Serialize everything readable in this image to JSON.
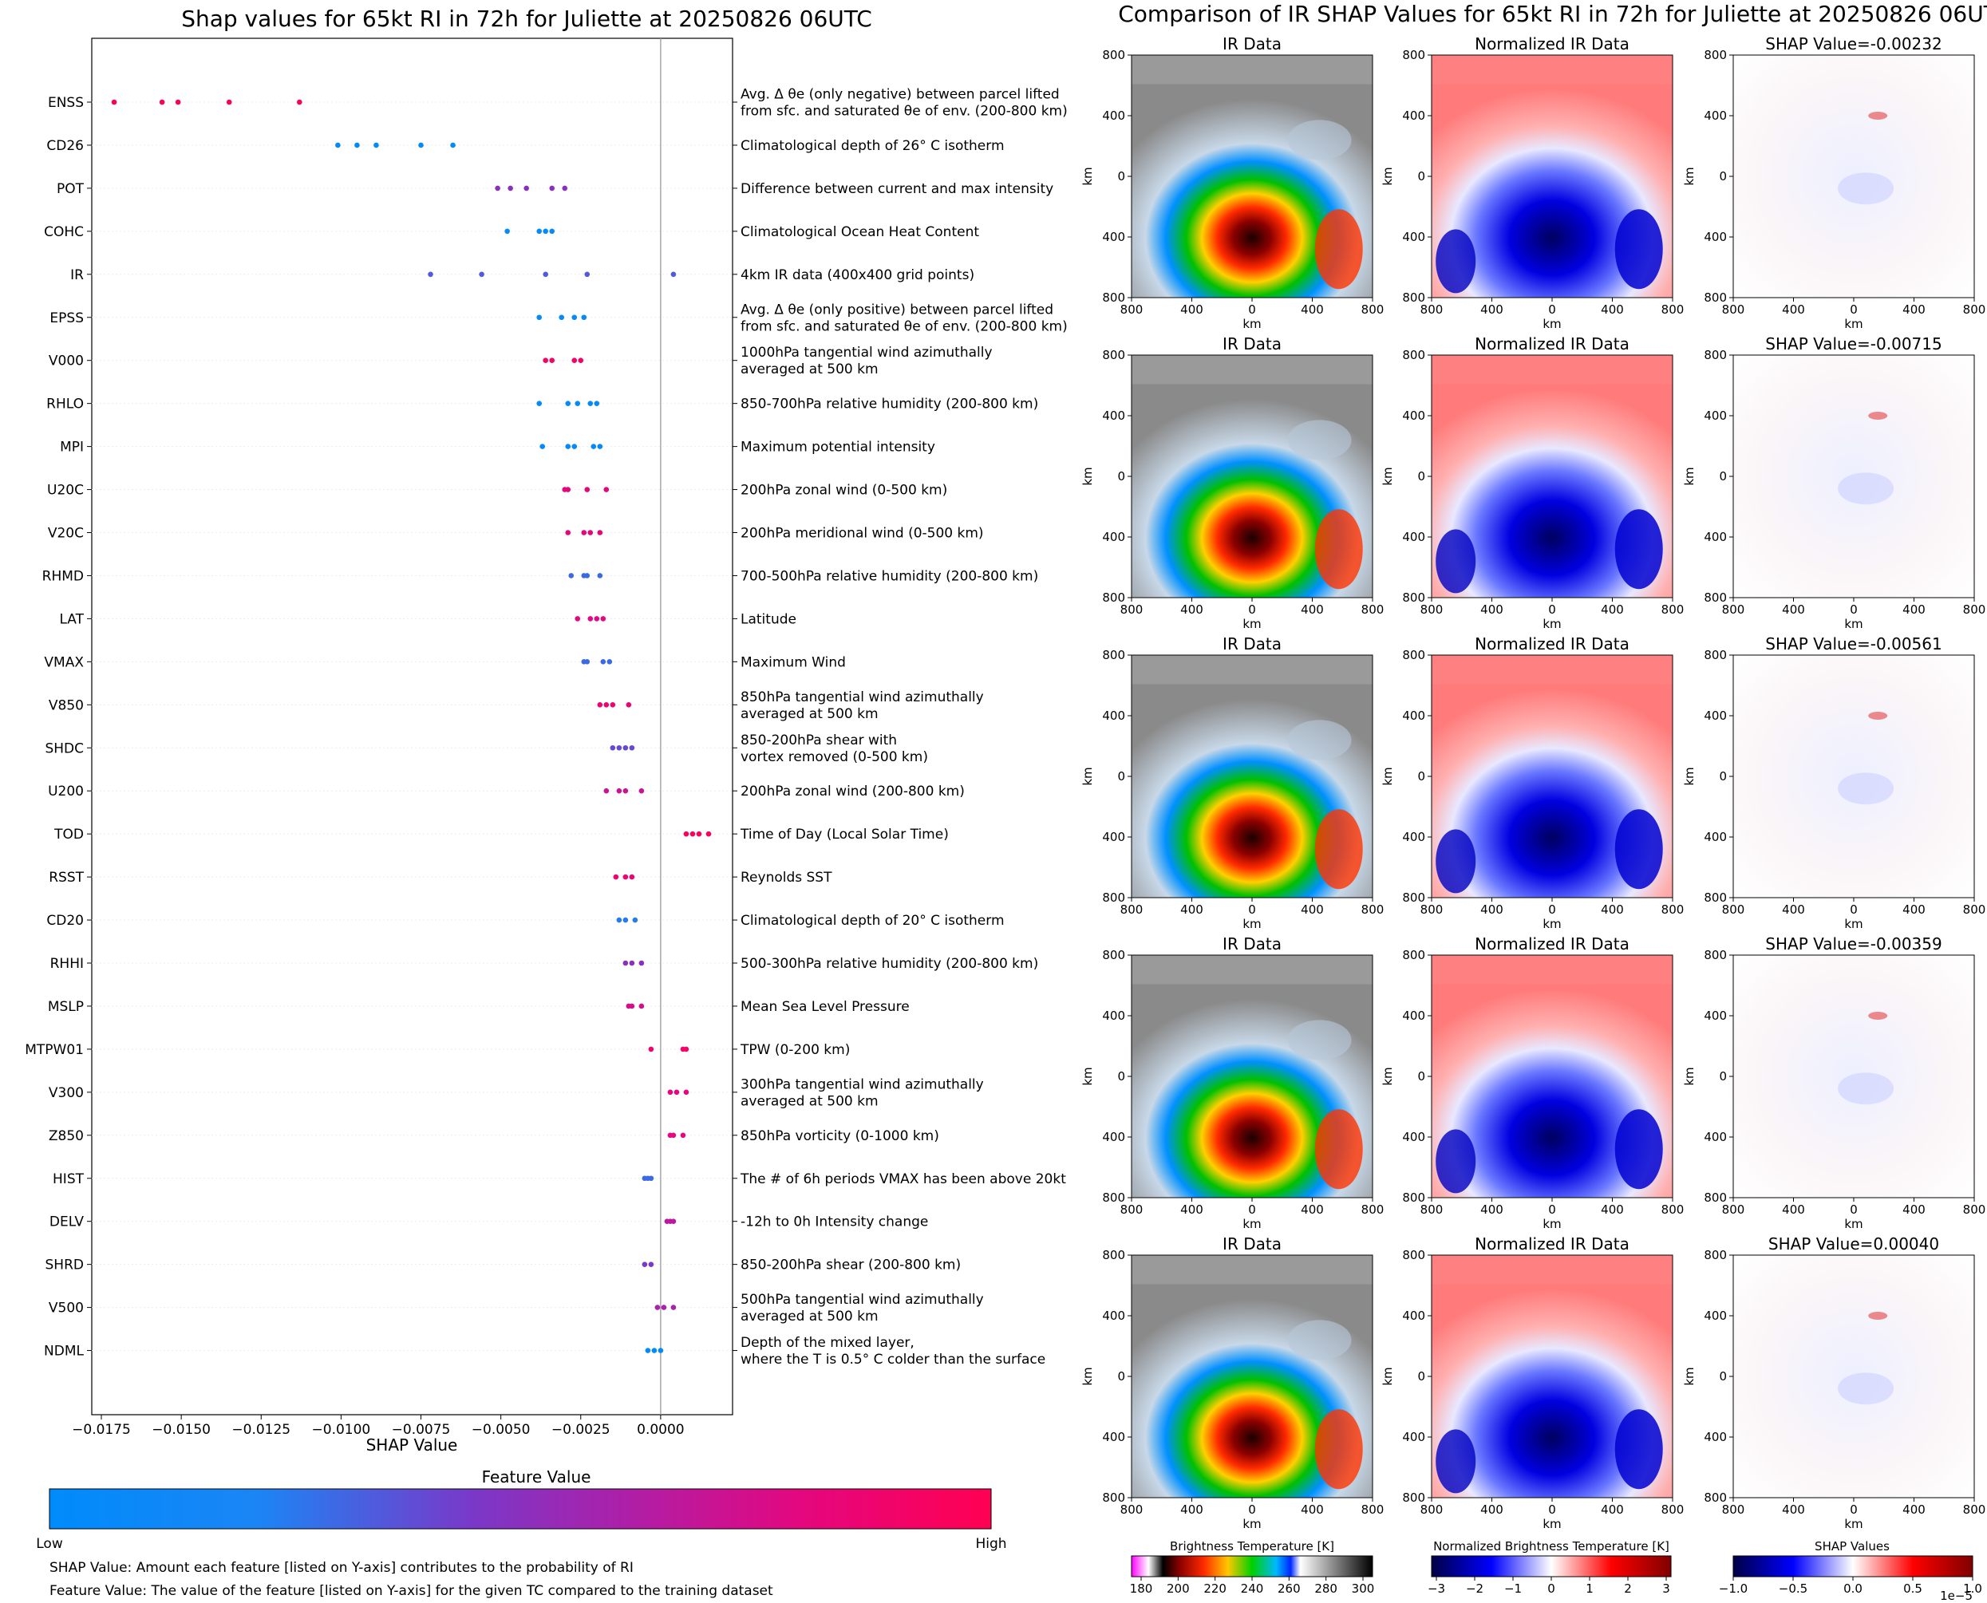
{
  "left_panel": {
    "title": "Shap values for 65kt RI in 72h for Juliette at 20250826 06UTC",
    "colorbar_title": "Feature Value",
    "colorbar_low": "Low",
    "colorbar_high": "High",
    "note_1": "SHAP Value: Amount each feature [listed on Y-axis] contributes to the probability of RI",
    "note_2": "Feature Value: The value of the feature [listed on Y-axis] for the given TC compared to the training dataset",
    "colors": {
      "low": "#008bfb",
      "mid": "#8b2fb5",
      "high": "#ff0052"
    }
  },
  "chart_data": [
    {
      "type": "scatter",
      "title": "Shap values for 65kt RI in 72h for Juliette at 20250826 06UTC",
      "xlabel": "SHAP Value",
      "xlim": [
        -0.0178,
        0.00225
      ],
      "xticks": [
        -0.0175,
        -0.015,
        -0.0125,
        -0.01,
        -0.0075,
        -0.005,
        -0.0025,
        0.0
      ],
      "xtick_labels": [
        "−0.0175",
        "−0.0150",
        "−0.0125",
        "−0.0100",
        "−0.0075",
        "−0.0050",
        "−0.0025",
        "0.0000"
      ],
      "features": [
        {
          "name": "ENSS",
          "desc": [
            "Avg. Δ θe (only negative) between parcel lifted",
            "from sfc. and saturated θe of env. (200-800 km)"
          ],
          "shap": [
            -0.0171,
            -0.0156,
            -0.0151,
            -0.0135,
            -0.0113
          ],
          "fv": [
            0.98,
            0.97,
            0.96,
            0.95,
            0.95
          ]
        },
        {
          "name": "CD26",
          "desc": [
            "Climatological depth of 26° C isotherm"
          ],
          "shap": [
            -0.0101,
            -0.0095,
            -0.0089,
            -0.0075,
            -0.0065
          ],
          "fv": [
            0.02,
            0.02,
            0.02,
            0.02,
            0.02
          ]
        },
        {
          "name": "POT",
          "desc": [
            "Difference between current and max intensity"
          ],
          "shap": [
            -0.0051,
            -0.0047,
            -0.0042,
            -0.0034,
            -0.003
          ],
          "fv": [
            0.5,
            0.5,
            0.5,
            0.5,
            0.5
          ]
        },
        {
          "name": "COHC",
          "desc": [
            "Climatological Ocean Heat Content"
          ],
          "shap": [
            -0.0048,
            -0.0038,
            -0.0036,
            -0.0034
          ],
          "fv": [
            0.05,
            0.05,
            0.05,
            0.05
          ]
        },
        {
          "name": "IR",
          "desc": [
            "4km IR data (400x400 grid points)"
          ],
          "shap": [
            -0.0072,
            -0.0056,
            -0.0036,
            -0.0023,
            0.0004
          ],
          "fv": [
            0.35,
            0.35,
            0.35,
            0.35,
            0.35
          ]
        },
        {
          "name": "EPSS",
          "desc": [
            "Avg. Δ θe (only positive) between parcel lifted",
            "from sfc. and saturated θe of env. (200-800 km)"
          ],
          "shap": [
            -0.0038,
            -0.0031,
            -0.0027,
            -0.0024
          ],
          "fv": [
            0.05,
            0.05,
            0.05,
            0.05
          ]
        },
        {
          "name": "V000",
          "desc": [
            "1000hPa tangential wind azimuthally",
            "averaged at 500 km"
          ],
          "shap": [
            -0.0036,
            -0.0034,
            -0.0027,
            -0.0025
          ],
          "fv": [
            0.92,
            0.92,
            0.92,
            0.92
          ]
        },
        {
          "name": "RHLO",
          "desc": [
            "850-700hPa relative humidity (200-800 km)"
          ],
          "shap": [
            -0.0038,
            -0.0029,
            -0.0026,
            -0.0022,
            -0.002
          ],
          "fv": [
            0.05,
            0.05,
            0.05,
            0.05,
            0.05
          ]
        },
        {
          "name": "MPI",
          "desc": [
            "Maximum potential intensity"
          ],
          "shap": [
            -0.0037,
            -0.0029,
            -0.0027,
            -0.0021,
            -0.0019
          ],
          "fv": [
            0.05,
            0.05,
            0.05,
            0.05,
            0.05
          ]
        },
        {
          "name": "U20C",
          "desc": [
            "200hPa zonal wind (0-500 km)"
          ],
          "shap": [
            -0.003,
            -0.0029,
            -0.0023,
            -0.0017
          ],
          "fv": [
            0.82,
            0.82,
            0.82,
            0.82
          ]
        },
        {
          "name": "V20C",
          "desc": [
            "200hPa meridional wind (0-500 km)"
          ],
          "shap": [
            -0.0029,
            -0.0024,
            -0.0022,
            -0.0019
          ],
          "fv": [
            0.82,
            0.82,
            0.82,
            0.82
          ]
        },
        {
          "name": "RHMD",
          "desc": [
            "700-500hPa relative humidity (200-800 km)"
          ],
          "shap": [
            -0.0028,
            -0.0024,
            -0.0023,
            -0.0019
          ],
          "fv": [
            0.3,
            0.3,
            0.3,
            0.3
          ]
        },
        {
          "name": "LAT",
          "desc": [
            "Latitude"
          ],
          "shap": [
            -0.0026,
            -0.0022,
            -0.002,
            -0.0018
          ],
          "fv": [
            0.8,
            0.8,
            0.8,
            0.8
          ]
        },
        {
          "name": "VMAX",
          "desc": [
            "Maximum Wind"
          ],
          "shap": [
            -0.0024,
            -0.0023,
            -0.0018,
            -0.0016
          ],
          "fv": [
            0.3,
            0.3,
            0.3,
            0.3
          ]
        },
        {
          "name": "V850",
          "desc": [
            "850hPa tangential wind azimuthally",
            "averaged at 500 km"
          ],
          "shap": [
            -0.0019,
            -0.0017,
            -0.0015,
            -0.001
          ],
          "fv": [
            0.85,
            0.85,
            0.85,
            0.85
          ]
        },
        {
          "name": "SHDC",
          "desc": [
            "850-200hPa shear with",
            "vortex removed (0-500 km)"
          ],
          "shap": [
            -0.0015,
            -0.0013,
            -0.0011,
            -0.0009
          ],
          "fv": [
            0.4,
            0.4,
            0.4,
            0.4
          ]
        },
        {
          "name": "U200",
          "desc": [
            "200hPa zonal wind (200-800 km)"
          ],
          "shap": [
            -0.0017,
            -0.0013,
            -0.0011,
            -0.0006
          ],
          "fv": [
            0.7,
            0.7,
            0.7,
            0.7
          ]
        },
        {
          "name": "TOD",
          "desc": [
            "Time of Day (Local Solar Time)"
          ],
          "shap": [
            0.0008,
            0.001,
            0.0012,
            0.0015
          ],
          "fv": [
            0.95,
            0.95,
            0.95,
            0.95
          ]
        },
        {
          "name": "RSST",
          "desc": [
            "Reynolds SST"
          ],
          "shap": [
            -0.0014,
            -0.0011,
            -0.0009
          ],
          "fv": [
            0.85,
            0.85,
            0.85
          ]
        },
        {
          "name": "CD20",
          "desc": [
            "Climatological depth of 20° C isotherm"
          ],
          "shap": [
            -0.0013,
            -0.0011,
            -0.0008
          ],
          "fv": [
            0.25,
            0.25,
            0.25
          ]
        },
        {
          "name": "RHHI",
          "desc": [
            "500-300hPa relative humidity (200-800 km)"
          ],
          "shap": [
            -0.0011,
            -0.0009,
            -0.0006
          ],
          "fv": [
            0.5,
            0.5,
            0.5
          ]
        },
        {
          "name": "MSLP",
          "desc": [
            "Mean Sea Level Pressure"
          ],
          "shap": [
            -0.001,
            -0.0009,
            -0.0006
          ],
          "fv": [
            0.75,
            0.75,
            0.75
          ]
        },
        {
          "name": "MTPW01",
          "desc": [
            "TPW (0-200 km)"
          ],
          "shap": [
            -0.0003,
            0.0007,
            0.0008
          ],
          "fv": [
            0.9,
            0.9,
            0.9
          ]
        },
        {
          "name": "V300",
          "desc": [
            "300hPa tangential wind azimuthally",
            "averaged at 500 km"
          ],
          "shap": [
            0.0003,
            0.0005,
            0.0008
          ],
          "fv": [
            0.8,
            0.8,
            0.8
          ]
        },
        {
          "name": "Z850",
          "desc": [
            "850hPa vorticity (0-1000 km)"
          ],
          "shap": [
            0.0003,
            0.0004,
            0.0007
          ],
          "fv": [
            0.8,
            0.8,
            0.8
          ]
        },
        {
          "name": "HIST",
          "desc": [
            "The # of 6h periods VMAX has been above 20kt"
          ],
          "shap": [
            -0.0005,
            -0.0004,
            -0.0003
          ],
          "fv": [
            0.3,
            0.3,
            0.3
          ]
        },
        {
          "name": "DELV",
          "desc": [
            "-12h to 0h Intensity change"
          ],
          "shap": [
            0.0002,
            0.0003,
            0.0004
          ],
          "fv": [
            0.65,
            0.65,
            0.65
          ]
        },
        {
          "name": "SHRD",
          "desc": [
            "850-200hPa shear (200-800 km)"
          ],
          "shap": [
            -0.0005,
            -0.0003
          ],
          "fv": [
            0.45,
            0.45
          ]
        },
        {
          "name": "V500",
          "desc": [
            "500hPa tangential wind azimuthally",
            "averaged at 500 km"
          ],
          "shap": [
            -0.0001,
            0.0001,
            0.0004
          ],
          "fv": [
            0.6,
            0.6,
            0.6
          ]
        },
        {
          "name": "NDML",
          "desc": [
            "Depth of the mixed layer,",
            "where the T is 0.5° C colder than the surface"
          ],
          "shap": [
            -0.0004,
            -0.0002,
            0.0
          ],
          "fv": [
            0.05,
            0.05,
            0.05
          ]
        }
      ]
    }
  ],
  "right_panel": {
    "title": "Comparison of IR SHAP Values for 65kt RI in 72h for Juliette at 20250826 06UTC",
    "column_titles": [
      "IR Data",
      "Normalized IR Data"
    ],
    "shap_titles": [
      "SHAP Value=-0.00232",
      "SHAP Value=-0.00715",
      "SHAP Value=-0.00561",
      "SHAP Value=-0.00359",
      "SHAP Value=0.00040"
    ],
    "axis_label": "km",
    "tick_labels": [
      "800",
      "400",
      "0",
      "400",
      "800"
    ],
    "colorbars": [
      {
        "title": "Brightness Temperature [K]",
        "ticks": [
          "180",
          "200",
          "220",
          "240",
          "260",
          "280",
          "300"
        ]
      },
      {
        "title": "Normalized Brightness Temperature [K]",
        "ticks": [
          "−3",
          "−2",
          "−1",
          "0",
          "1",
          "2",
          "3"
        ]
      },
      {
        "title": "SHAP Values",
        "ticks": [
          "−1.0",
          "−0.5",
          "0.0",
          "0.5",
          "1.0"
        ],
        "exponent": "1e−5"
      }
    ]
  }
}
